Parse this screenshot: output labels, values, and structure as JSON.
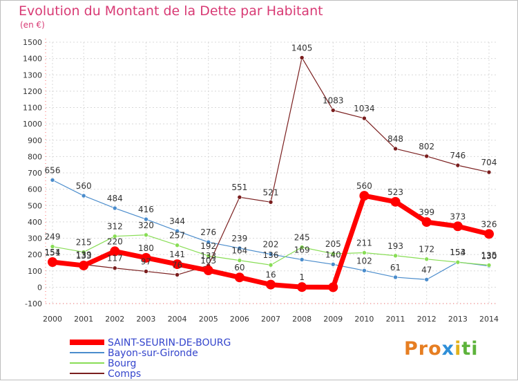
{
  "chart_data": {
    "type": "line",
    "title": "Evolution du Montant de la Dette par Habitant",
    "unit_label": "(en €)",
    "x": [
      "2000",
      "2001",
      "2002",
      "2003",
      "2004",
      "2005",
      "2006",
      "2007",
      "2008",
      "2009",
      "2010",
      "2011",
      "2012",
      "2013",
      "2014"
    ],
    "ylim": [
      -100,
      1500
    ],
    "yticks": [
      "-100",
      "0",
      "100",
      "200",
      "300",
      "400",
      "500",
      "600",
      "700",
      "800",
      "900",
      "1000",
      "1100",
      "1200",
      "1300",
      "1400",
      "1500"
    ],
    "grid": true,
    "legend_placement": "bottom-left",
    "series": [
      {
        "name": "SAINT-SEURIN-DE-BOURG",
        "color": "#ff0000",
        "values": [
          154,
          133,
          220,
          180,
          141,
          103,
          60,
          16,
          1,
          0,
          560,
          523,
          399,
          373,
          326
        ],
        "labels": [
          "154",
          "133",
          "220",
          "180",
          "141",
          "103",
          "60",
          "16",
          "1",
          "",
          "560",
          "523",
          "399",
          "373",
          "326"
        ]
      },
      {
        "name": "Bayon-sur-Gironde",
        "color": "#4a8ccc",
        "values": [
          656,
          560,
          484,
          416,
          344,
          276,
          239,
          202,
          169,
          140,
          102,
          61,
          47,
          154,
          130
        ],
        "labels": [
          "656",
          "560",
          "484",
          "416",
          "344",
          "276",
          "239",
          "202",
          "169",
          "140",
          "102",
          "61",
          "47",
          "154",
          "130"
        ]
      },
      {
        "name": "Bourg",
        "color": "#88dd55",
        "values": [
          249,
          215,
          312,
          320,
          257,
          192,
          164,
          136,
          245,
          205,
          211,
          193,
          172,
          153,
          135
        ],
        "labels": [
          "249",
          "215",
          "312",
          "320",
          "257",
          "192",
          "164",
          "136",
          "245",
          "205",
          "211",
          "193",
          "172",
          "153",
          "135"
        ]
      },
      {
        "name": "Comps",
        "color": "#7a1e1e",
        "values": [
          151,
          139,
          117,
          97,
          76,
          133,
          551,
          521,
          1405,
          1083,
          1034,
          848,
          802,
          746,
          704
        ],
        "labels": [
          "151",
          "139",
          "117",
          "97",
          "76",
          "133",
          "551",
          "521",
          "1405",
          "1083",
          "1034",
          "848",
          "802",
          "746",
          "704"
        ]
      }
    ]
  },
  "brand": {
    "p1": "Pro",
    "p2": "x",
    "p3": "i",
    "p4": "ti"
  },
  "colors": {
    "title": "#d83a74",
    "legend_text": "#3344cc",
    "axis": "#333333"
  }
}
